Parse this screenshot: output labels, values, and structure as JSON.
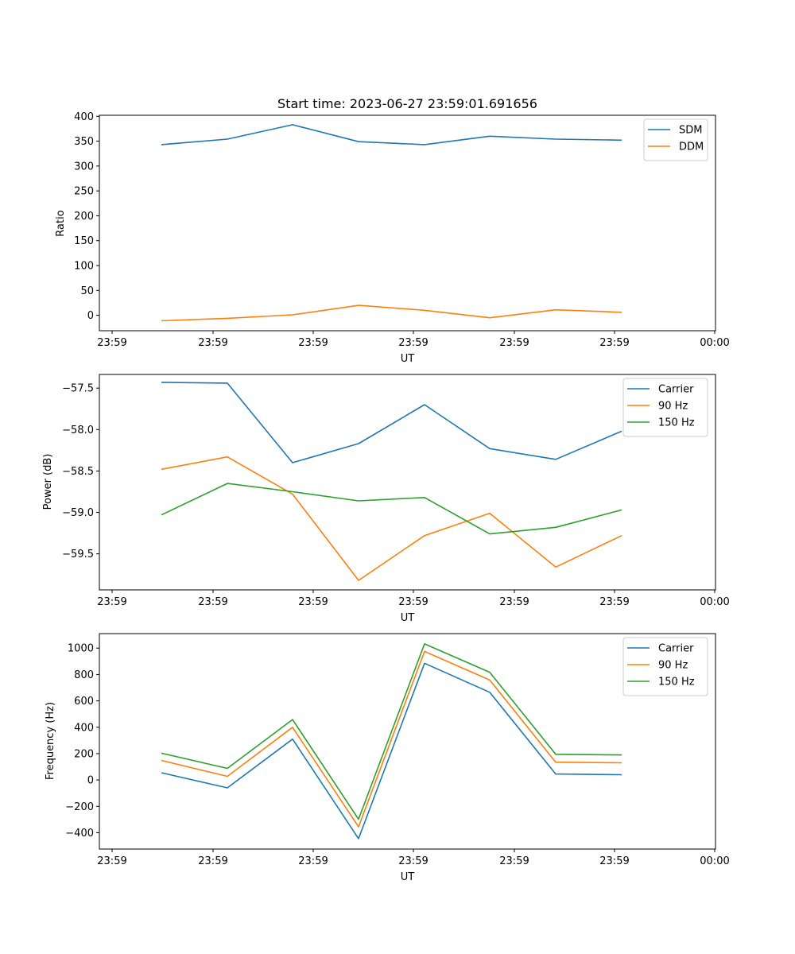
{
  "chart_data": [
    {
      "type": "line",
      "title": "Start time: 2023-06-27 23:59:01.691656",
      "xlabel": "UT",
      "ylabel": "Ratio",
      "x_tick_labels": [
        "23:59",
        "23:59",
        "23:59",
        "23:59",
        "23:59",
        "23:59",
        "23:59"
      ],
      "x_tick_label_end": "00:00",
      "ylim": [
        -31,
        402
      ],
      "yticks": [
        0,
        50,
        100,
        150,
        200,
        250,
        300,
        350,
        400
      ],
      "y_tick_labels": [
        "0",
        "50",
        "100",
        "150",
        "200",
        "250",
        "300",
        "350",
        "400"
      ],
      "legend_position": "top-right",
      "series": [
        {
          "name": "SDM",
          "color": "#1f77b4",
          "values": [
            343,
            354,
            383,
            349,
            343,
            360,
            354,
            352
          ]
        },
        {
          "name": "DDM",
          "color": "#ff7f0e",
          "values": [
            -11,
            -6,
            1,
            20,
            10,
            -5,
            11,
            6
          ]
        }
      ]
    },
    {
      "type": "line",
      "title": "",
      "xlabel": "UT",
      "ylabel": "Power (dB)",
      "x_tick_labels": [
        "23:59",
        "23:59",
        "23:59",
        "23:59",
        "23:59",
        "23:59",
        "23:59"
      ],
      "x_tick_label_end": "00:00",
      "ylim": [
        -59.935,
        -57.335
      ],
      "yticks": [
        -57.5,
        -58.0,
        -58.5,
        -59.0,
        -59.5
      ],
      "y_tick_labels": [
        "−57.5",
        "−58.0",
        "−58.5",
        "−59.0",
        "−59.5"
      ],
      "legend_position": "top-right",
      "series": [
        {
          "name": "Carrier",
          "color": "#1f77b4",
          "values": [
            -57.43,
            -57.44,
            -58.4,
            -58.17,
            -57.7,
            -58.23,
            -58.36,
            -58.02
          ]
        },
        {
          "name": "90 Hz",
          "color": "#ff7f0e",
          "values": [
            -58.48,
            -58.33,
            -58.78,
            -59.82,
            -59.28,
            -59.01,
            -59.66,
            -59.28
          ]
        },
        {
          "name": "150 Hz",
          "color": "#2ca02c",
          "values": [
            -59.03,
            -58.65,
            -58.75,
            -58.86,
            -58.82,
            -59.26,
            -59.18,
            -58.97
          ]
        }
      ]
    },
    {
      "type": "line",
      "title": "",
      "xlabel": "UT",
      "ylabel": "Frequency (Hz)",
      "x_tick_labels": [
        "23:59",
        "23:59",
        "23:59",
        "23:59",
        "23:59",
        "23:59",
        "23:59"
      ],
      "x_tick_label_end": "00:00",
      "ylim": [
        -524,
        1110
      ],
      "yticks": [
        1000,
        800,
        600,
        400,
        200,
        0,
        -200,
        -400
      ],
      "y_tick_labels": [
        "1000",
        "800",
        "600",
        "400",
        "200",
        "0",
        "−200",
        "−400"
      ],
      "legend_position": "top-right",
      "series": [
        {
          "name": "Carrier",
          "color": "#1f77b4",
          "values": [
            55,
            -60,
            310,
            -445,
            885,
            665,
            45,
            40
          ]
        },
        {
          "name": "90 Hz",
          "color": "#ff7f0e",
          "values": [
            148,
            28,
            400,
            -355,
            975,
            758,
            135,
            130
          ]
        },
        {
          "name": "150 Hz",
          "color": "#2ca02c",
          "values": [
            203,
            88,
            458,
            -298,
            1032,
            817,
            195,
            190
          ]
        }
      ]
    }
  ]
}
